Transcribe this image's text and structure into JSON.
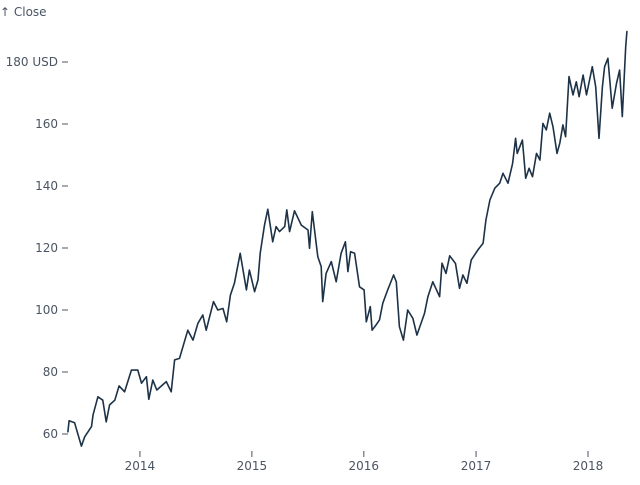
{
  "chart_data": {
    "type": "line",
    "title": "",
    "xlabel": "",
    "ylabel": "↑ Close",
    "y_unit": "USD",
    "xlim": [
      "2013-05-11",
      "2018-05-08"
    ],
    "ylim": [
      55,
      190
    ],
    "grid": false,
    "x_ticks": [
      "2014",
      "2015",
      "2016",
      "2017",
      "2018"
    ],
    "y_ticks": [
      {
        "value": 60,
        "label": "60"
      },
      {
        "value": 80,
        "label": "80"
      },
      {
        "value": 100,
        "label": "100"
      },
      {
        "value": 120,
        "label": "120"
      },
      {
        "value": 140,
        "label": "140"
      },
      {
        "value": 160,
        "label": "160"
      },
      {
        "value": 180,
        "label": "180 USD"
      }
    ],
    "line_color": "#1d3247",
    "series": [
      {
        "points": [
          [
            "2013-05-11",
            60.7
          ],
          [
            "2013-05-15",
            64.3
          ],
          [
            "2013-06-02",
            63.6
          ],
          [
            "2013-06-24",
            56.1
          ],
          [
            "2013-07-05",
            59.1
          ],
          [
            "2013-07-27",
            62.4
          ],
          [
            "2013-08-01",
            66.1
          ],
          [
            "2013-08-17",
            72.0
          ],
          [
            "2013-09-02",
            70.9
          ],
          [
            "2013-09-13",
            63.9
          ],
          [
            "2013-09-24",
            69.4
          ],
          [
            "2013-10-11",
            70.9
          ],
          [
            "2013-10-25",
            75.5
          ],
          [
            "2013-11-12",
            73.6
          ],
          [
            "2013-12-04",
            80.6
          ],
          [
            "2013-12-25",
            80.6
          ],
          [
            "2014-01-06",
            76.4
          ],
          [
            "2014-01-22",
            78.5
          ],
          [
            "2014-01-30",
            71.2
          ],
          [
            "2014-02-12",
            77.4
          ],
          [
            "2014-02-25",
            74.2
          ],
          [
            "2014-03-28",
            76.9
          ],
          [
            "2014-04-13",
            73.6
          ],
          [
            "2014-04-24",
            83.9
          ],
          [
            "2014-05-10",
            84.4
          ],
          [
            "2014-06-06",
            93.5
          ],
          [
            "2014-06-23",
            90.3
          ],
          [
            "2014-07-09",
            95.7
          ],
          [
            "2014-07-25",
            98.4
          ],
          [
            "2014-08-05",
            93.5
          ],
          [
            "2014-08-29",
            102.7
          ],
          [
            "2014-09-12",
            100.0
          ],
          [
            "2014-09-29",
            100.5
          ],
          [
            "2014-10-11",
            96.2
          ],
          [
            "2014-10-23",
            104.8
          ],
          [
            "2014-11-05",
            108.6
          ],
          [
            "2014-11-24",
            118.3
          ],
          [
            "2014-12-14",
            106.5
          ],
          [
            "2014-12-24",
            112.9
          ],
          [
            "2015-01-10",
            105.9
          ],
          [
            "2015-01-21",
            109.7
          ],
          [
            "2015-01-28",
            118.3
          ],
          [
            "2015-02-11",
            127.4
          ],
          [
            "2015-02-22",
            132.5
          ],
          [
            "2015-03-10",
            122.0
          ],
          [
            "2015-03-21",
            126.9
          ],
          [
            "2015-04-01",
            125.3
          ],
          [
            "2015-04-18",
            126.9
          ],
          [
            "2015-04-25",
            132.3
          ],
          [
            "2015-05-04",
            125.3
          ],
          [
            "2015-05-20",
            132.0
          ],
          [
            "2015-06-11",
            127.4
          ],
          [
            "2015-07-03",
            125.8
          ],
          [
            "2015-07-08",
            119.9
          ],
          [
            "2015-07-17",
            131.7
          ],
          [
            "2015-08-04",
            117.2
          ],
          [
            "2015-08-15",
            114.0
          ],
          [
            "2015-08-20",
            102.7
          ],
          [
            "2015-08-31",
            111.8
          ],
          [
            "2015-09-17",
            115.6
          ],
          [
            "2015-10-03",
            109.1
          ],
          [
            "2015-10-19",
            118.3
          ],
          [
            "2015-11-02",
            122.0
          ],
          [
            "2015-11-10",
            112.4
          ],
          [
            "2015-11-19",
            118.8
          ],
          [
            "2015-12-02",
            118.3
          ],
          [
            "2015-12-18",
            107.5
          ],
          [
            "2016-01-02",
            106.5
          ],
          [
            "2016-01-09",
            96.2
          ],
          [
            "2016-01-22",
            101.1
          ],
          [
            "2016-01-28",
            93.5
          ],
          [
            "2016-02-10",
            95.2
          ],
          [
            "2016-02-21",
            96.8
          ],
          [
            "2016-03-03",
            102.2
          ],
          [
            "2016-03-19",
            106.5
          ],
          [
            "2016-04-07",
            111.3
          ],
          [
            "2016-04-16",
            109.1
          ],
          [
            "2016-04-26",
            94.6
          ],
          [
            "2016-05-09",
            90.3
          ],
          [
            "2016-05-23",
            100.0
          ],
          [
            "2016-06-09",
            97.3
          ],
          [
            "2016-06-22",
            91.9
          ],
          [
            "2016-07-17",
            98.9
          ],
          [
            "2016-07-28",
            104.3
          ],
          [
            "2016-08-13",
            109.1
          ],
          [
            "2016-09-04",
            104.3
          ],
          [
            "2016-09-12",
            115.1
          ],
          [
            "2016-09-25",
            111.8
          ],
          [
            "2016-10-07",
            117.5
          ],
          [
            "2016-10-26",
            115.0
          ],
          [
            "2016-11-08",
            107.0
          ],
          [
            "2016-11-19",
            111.3
          ],
          [
            "2016-12-02",
            108.6
          ],
          [
            "2016-12-16",
            116.1
          ],
          [
            "2017-01-07",
            119.4
          ],
          [
            "2017-01-24",
            121.5
          ],
          [
            "2017-02-02",
            129.0
          ],
          [
            "2017-02-15",
            135.5
          ],
          [
            "2017-03-03",
            139.3
          ],
          [
            "2017-03-19",
            140.9
          ],
          [
            "2017-03-30",
            144.1
          ],
          [
            "2017-04-15",
            140.9
          ],
          [
            "2017-04-30",
            147.3
          ],
          [
            "2017-05-10",
            155.4
          ],
          [
            "2017-05-15",
            150.5
          ],
          [
            "2017-06-01",
            154.8
          ],
          [
            "2017-06-12",
            142.5
          ],
          [
            "2017-06-23",
            145.7
          ],
          [
            "2017-07-04",
            143.0
          ],
          [
            "2017-07-17",
            150.5
          ],
          [
            "2017-07-28",
            148.4
          ],
          [
            "2017-08-07",
            160.2
          ],
          [
            "2017-08-18",
            158.1
          ],
          [
            "2017-08-29",
            163.5
          ],
          [
            "2017-09-09",
            159.1
          ],
          [
            "2017-09-22",
            150.5
          ],
          [
            "2017-10-01",
            153.8
          ],
          [
            "2017-10-11",
            159.7
          ],
          [
            "2017-10-20",
            155.9
          ],
          [
            "2017-10-31",
            175.3
          ],
          [
            "2017-11-13",
            169.4
          ],
          [
            "2017-11-24",
            173.6
          ],
          [
            "2017-12-03",
            168.8
          ],
          [
            "2017-12-16",
            175.8
          ],
          [
            "2017-12-27",
            169.4
          ],
          [
            "2018-01-15",
            178.5
          ],
          [
            "2018-01-26",
            172.0
          ],
          [
            "2018-02-06",
            155.4
          ],
          [
            "2018-02-17",
            172.0
          ],
          [
            "2018-02-24",
            178.5
          ],
          [
            "2018-03-07",
            181.2
          ],
          [
            "2018-03-21",
            165.1
          ],
          [
            "2018-04-04",
            173.1
          ],
          [
            "2018-04-14",
            177.4
          ],
          [
            "2018-04-23",
            162.4
          ],
          [
            "2018-05-04",
            184.9
          ],
          [
            "2018-05-08",
            189.8
          ]
        ]
      }
    ]
  }
}
